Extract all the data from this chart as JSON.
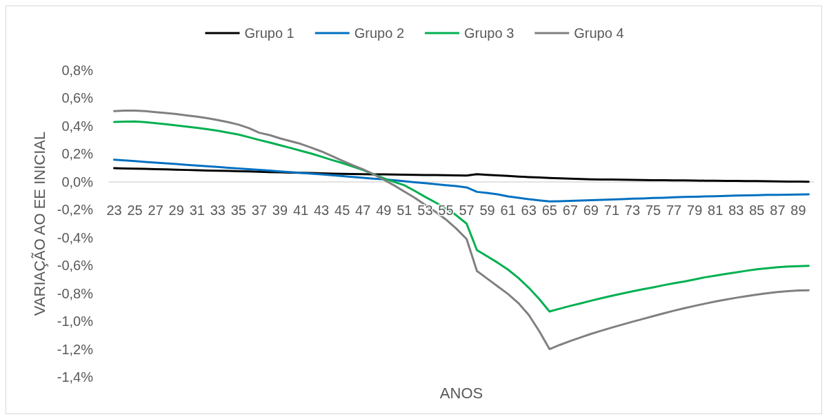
{
  "chart_data": {
    "type": "line",
    "categories": [
      "23",
      null,
      "25",
      null,
      "27",
      null,
      "29",
      null,
      "31",
      null,
      "33",
      null,
      "35",
      null,
      "37",
      null,
      "39",
      null,
      "41",
      null,
      "43",
      null,
      "45",
      null,
      "47",
      null,
      "49",
      null,
      "51",
      null,
      "53",
      null,
      "55",
      null,
      "57",
      null,
      "59",
      null,
      "61",
      null,
      "63",
      null,
      "65",
      null,
      "67",
      null,
      "69",
      null,
      "71",
      null,
      "73",
      null,
      "75",
      null,
      "77",
      null,
      "79",
      null,
      "81",
      null,
      "83",
      null,
      "85",
      null,
      "87",
      null,
      "89",
      null
    ],
    "series": [
      {
        "name": "Grupo 1",
        "color": "#000000",
        "values": [
          0.098,
          0.096,
          0.094,
          0.093,
          0.091,
          0.089,
          0.087,
          0.085,
          0.083,
          0.081,
          0.079,
          0.078,
          0.076,
          0.074,
          0.072,
          0.07,
          0.068,
          0.066,
          0.065,
          0.063,
          0.061,
          0.059,
          0.057,
          0.056,
          0.055,
          0.054,
          0.053,
          0.052,
          0.051,
          0.05,
          0.049,
          0.048,
          0.047,
          0.046,
          0.045,
          0.055,
          0.05,
          0.046,
          0.042,
          0.038,
          0.034,
          0.031,
          0.028,
          0.025,
          0.022,
          0.02,
          0.018,
          0.017,
          0.016,
          0.015,
          0.014,
          0.013,
          0.012,
          0.011,
          0.01,
          0.01,
          0.009,
          0.008,
          0.008,
          0.007,
          0.006,
          0.005,
          0.005,
          0.004,
          0.003,
          0.002,
          0.001,
          0.0
        ]
      },
      {
        "name": "Grupo 2",
        "color": "#0070c0",
        "values": [
          0.159,
          0.154,
          0.149,
          0.143,
          0.138,
          0.133,
          0.128,
          0.122,
          0.117,
          0.112,
          0.107,
          0.101,
          0.096,
          0.091,
          0.086,
          0.081,
          0.075,
          0.07,
          0.065,
          0.059,
          0.053,
          0.047,
          0.041,
          0.035,
          0.029,
          0.023,
          0.018,
          0.011,
          0.004,
          -0.003,
          -0.01,
          -0.017,
          -0.024,
          -0.031,
          -0.04,
          -0.072,
          -0.08,
          -0.09,
          -0.105,
          -0.115,
          -0.125,
          -0.133,
          -0.14,
          -0.139,
          -0.137,
          -0.134,
          -0.132,
          -0.13,
          -0.127,
          -0.124,
          -0.121,
          -0.119,
          -0.116,
          -0.114,
          -0.111,
          -0.109,
          -0.107,
          -0.105,
          -0.103,
          -0.101,
          -0.099,
          -0.097,
          -0.096,
          -0.094,
          -0.093,
          -0.092,
          -0.091,
          -0.09
        ]
      },
      {
        "name": "Grupo 3",
        "color": "#00b050",
        "values": [
          0.429,
          0.432,
          0.433,
          0.428,
          0.421,
          0.413,
          0.405,
          0.396,
          0.387,
          0.377,
          0.366,
          0.353,
          0.339,
          0.32,
          0.3,
          0.282,
          0.262,
          0.243,
          0.223,
          0.203,
          0.18,
          0.157,
          0.135,
          0.11,
          0.085,
          0.055,
          0.025,
          0.0,
          -0.025,
          -0.065,
          -0.108,
          -0.148,
          -0.19,
          -0.24,
          -0.3,
          -0.49,
          -0.535,
          -0.58,
          -0.63,
          -0.69,
          -0.76,
          -0.84,
          -0.93,
          -0.91,
          -0.89,
          -0.872,
          -0.853,
          -0.835,
          -0.818,
          -0.802,
          -0.786,
          -0.771,
          -0.757,
          -0.742,
          -0.728,
          -0.715,
          -0.7,
          -0.685,
          -0.673,
          -0.661,
          -0.65,
          -0.638,
          -0.628,
          -0.62,
          -0.613,
          -0.608,
          -0.605,
          -0.603
        ]
      },
      {
        "name": "Grupo 4",
        "color": "#808080",
        "values": [
          0.507,
          0.511,
          0.511,
          0.507,
          0.5,
          0.494,
          0.486,
          0.476,
          0.467,
          0.456,
          0.443,
          0.428,
          0.41,
          0.385,
          0.352,
          0.335,
          0.312,
          0.292,
          0.272,
          0.246,
          0.218,
          0.185,
          0.152,
          0.12,
          0.09,
          0.055,
          0.015,
          -0.025,
          -0.07,
          -0.115,
          -0.165,
          -0.215,
          -0.27,
          -0.335,
          -0.41,
          -0.64,
          -0.695,
          -0.75,
          -0.805,
          -0.87,
          -0.955,
          -1.07,
          -1.2,
          -1.17,
          -1.142,
          -1.116,
          -1.091,
          -1.068,
          -1.046,
          -1.025,
          -1.004,
          -0.984,
          -0.964,
          -0.944,
          -0.925,
          -0.907,
          -0.89,
          -0.874,
          -0.859,
          -0.845,
          -0.832,
          -0.82,
          -0.809,
          -0.799,
          -0.791,
          -0.785,
          -0.78,
          -0.778
        ]
      }
    ],
    "ylim": [
      -1.4,
      0.8
    ],
    "yticks": [
      {
        "value": -1.4,
        "label": "-1,4%"
      },
      {
        "value": -1.2,
        "label": "-1,2%"
      },
      {
        "value": -1.0,
        "label": "-1,0%"
      },
      {
        "value": -0.8,
        "label": "-0,8%"
      },
      {
        "value": -0.6,
        "label": "-0,6%"
      },
      {
        "value": -0.4,
        "label": "-0,4%"
      },
      {
        "value": -0.2,
        "label": "-0,2%"
      },
      {
        "value": 0,
        "label": "0,0%"
      },
      {
        "value": 0.2,
        "label": "0,2%"
      },
      {
        "value": 0.4,
        "label": "0,4%"
      },
      {
        "value": 0.6,
        "label": "0,6%"
      },
      {
        "value": 0.8,
        "label": "0,8%"
      }
    ],
    "xlabel": "ANOS",
    "ylabel": "VARIAÇÃO AO EE INICIAL",
    "legend": "top",
    "grid": false,
    "marker": "none",
    "line_style": "solid"
  }
}
